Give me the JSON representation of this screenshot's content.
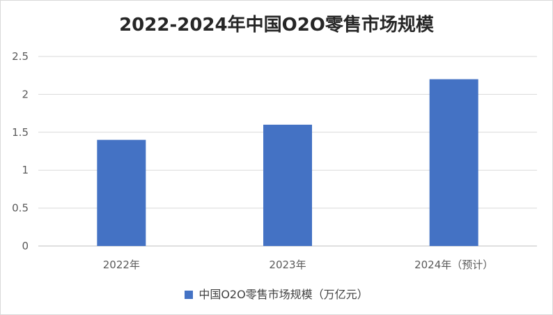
{
  "chart_data": {
    "type": "bar",
    "title": "2022-2024年中国O2O零售市场规模",
    "categories": [
      "2022年",
      "2023年",
      "2024年（预计）"
    ],
    "series": [
      {
        "name": "中国O2O零售市场规模（万亿元）",
        "values": [
          1.4,
          1.6,
          2.2
        ],
        "color": "#4472c4"
      }
    ],
    "ylim": [
      0,
      2.5
    ],
    "yticks": [
      "0",
      "0.5",
      "1",
      "1.5",
      "2",
      "2.5"
    ],
    "grid": true,
    "legend": "bottom"
  }
}
